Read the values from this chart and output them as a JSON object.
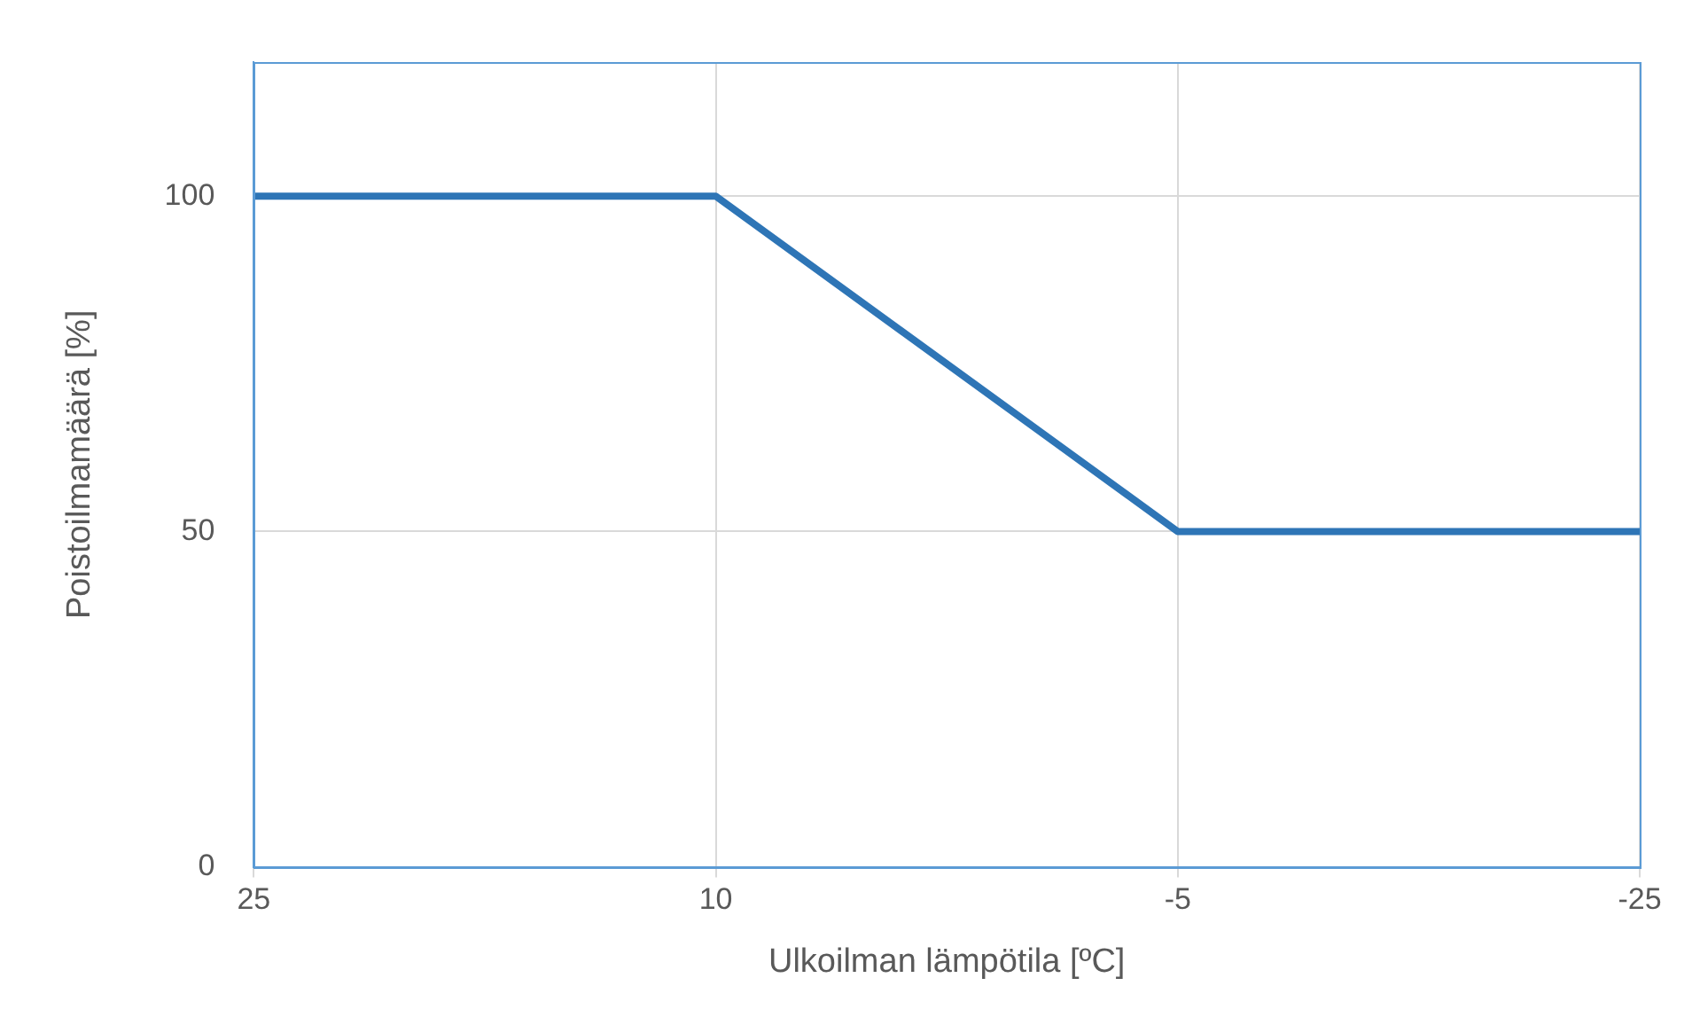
{
  "chart_data": {
    "type": "line",
    "xlabel": "Ulkoilman lämpötila [ºC]",
    "ylabel": "Poistoilmamäärä [%]",
    "categories": [
      "25",
      "10",
      "-5",
      "-25"
    ],
    "series": [
      {
        "color": "#2e75b6",
        "values": [
          100,
          100,
          50,
          50
        ]
      }
    ],
    "ylim": [
      0,
      120
    ],
    "yticks": [
      0,
      50,
      100
    ],
    "grid": true,
    "legend": false,
    "marker": "none",
    "line_style": "solid"
  }
}
